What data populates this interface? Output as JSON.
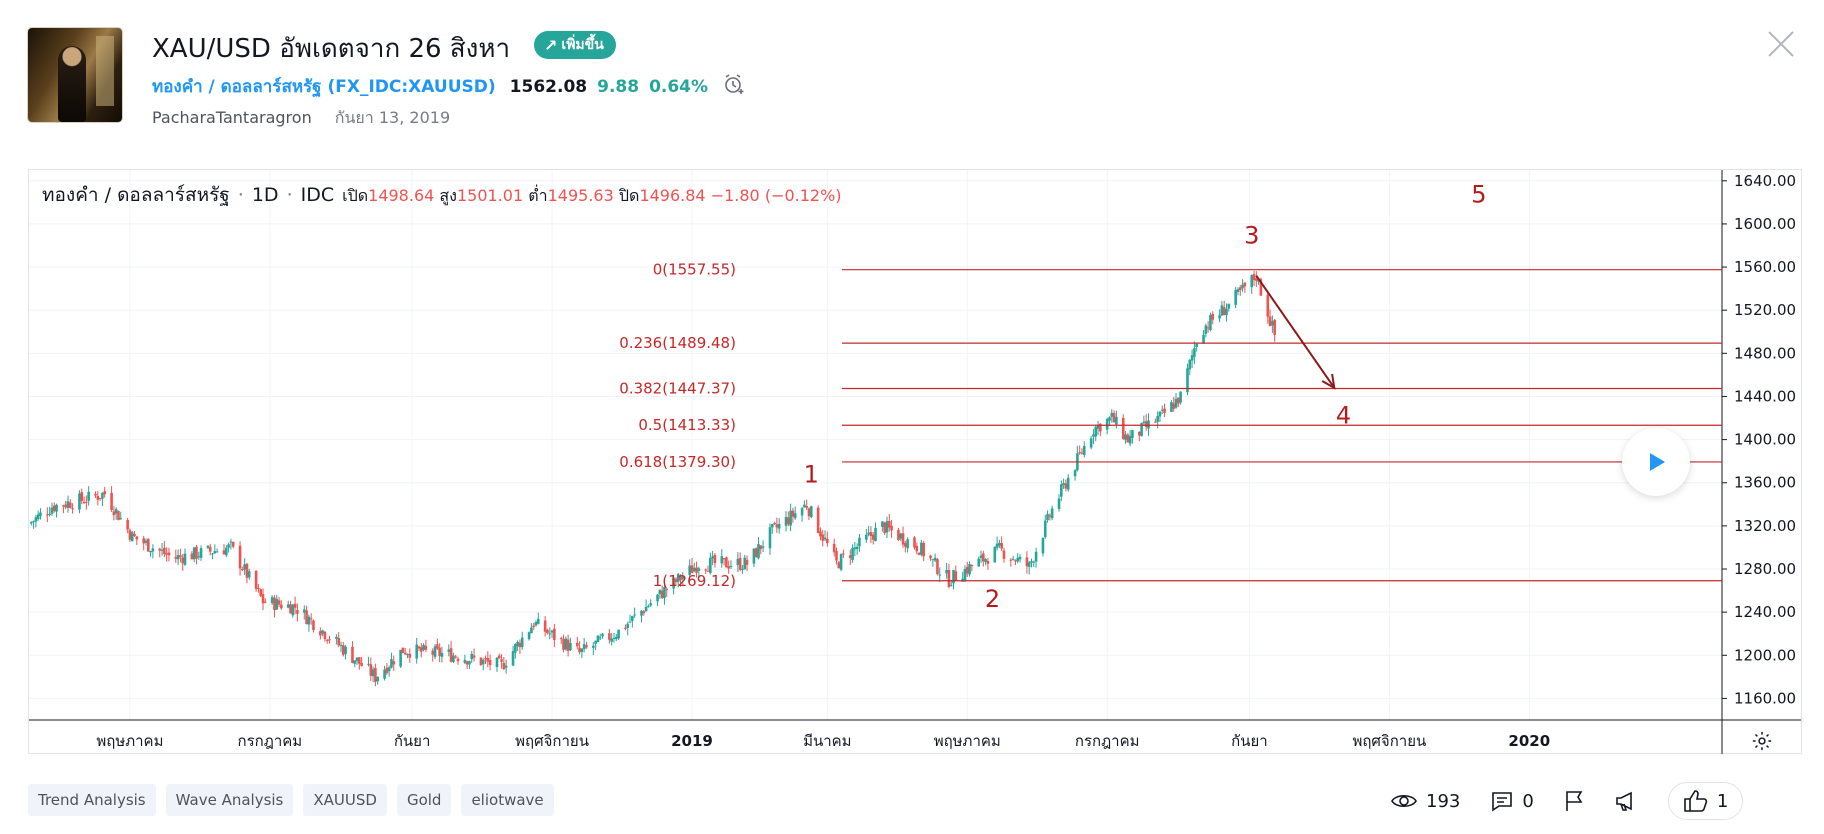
{
  "header": {
    "title": "XAU/USD อัพเดตจาก 26 สิงหา",
    "badge": "เพิ่มขึ้น",
    "symbol_name": "ทองคำ / ดอลลาร์สหรัฐ",
    "symbol_ticker": "FX_IDC:XAUUSD",
    "price": "1562.08",
    "change": "9.88",
    "change_pct": "0.64%",
    "author": "PacharaTantaragron",
    "date": "กันยา 13, 2019"
  },
  "legend": {
    "name": "ทองคำ / ดอลลาร์สหรัฐ",
    "interval": "1D",
    "source": "IDC",
    "open_label": "เปิด",
    "open": "1498.64",
    "high_label": "สูง",
    "high": "1501.01",
    "low_label": "ต่ำ",
    "low": "1495.63",
    "close_label": "ปิด",
    "close": "1496.84",
    "change": "−1.80 (−0.12%)"
  },
  "chart_data": {
    "type": "candlestick",
    "y_axis": {
      "min": 1140,
      "max": 1650,
      "ticks": [
        1160,
        1200,
        1240,
        1280,
        1320,
        1360,
        1400,
        1440,
        1480,
        1520,
        1560,
        1600,
        1640
      ],
      "tick_labels": [
        "1160.00",
        "1200.00",
        "1240.00",
        "1280.00",
        "1320.00",
        "1360.00",
        "1400.00",
        "1440.00",
        "1480.00",
        "1520.00",
        "1560.00",
        "1600.00",
        "1640.00"
      ]
    },
    "x_axis": {
      "start": "2018-03-18",
      "end": "2020-03-25",
      "ticks": [
        {
          "date": "2018-05-01",
          "label": "พฤษภาคม"
        },
        {
          "date": "2018-07-01",
          "label": "กรกฎาคม"
        },
        {
          "date": "2018-09-01",
          "label": "กันยา"
        },
        {
          "date": "2018-11-01",
          "label": "พฤศจิกายน"
        },
        {
          "date": "2019-01-01",
          "label": "2019"
        },
        {
          "date": "2019-03-01",
          "label": "มีนาคม"
        },
        {
          "date": "2019-05-01",
          "label": "พฤษภาคม"
        },
        {
          "date": "2019-07-01",
          "label": "กรกฎาคม"
        },
        {
          "date": "2019-09-01",
          "label": "กันยา"
        },
        {
          "date": "2019-11-01",
          "label": "พฤศจิกายน"
        },
        {
          "date": "2020-01-01",
          "label": "2020"
        }
      ]
    },
    "price_anchors": [
      [
        "2018-03-18",
        1322
      ],
      [
        "2018-03-28",
        1338
      ],
      [
        "2018-04-12",
        1345
      ],
      [
        "2018-04-20",
        1350
      ],
      [
        "2018-05-02",
        1310
      ],
      [
        "2018-05-20",
        1290
      ],
      [
        "2018-06-14",
        1300
      ],
      [
        "2018-06-28",
        1250
      ],
      [
        "2018-07-12",
        1245
      ],
      [
        "2018-08-16",
        1180
      ],
      [
        "2018-08-28",
        1205
      ],
      [
        "2018-09-20",
        1200
      ],
      [
        "2018-10-10",
        1190
      ],
      [
        "2018-10-24",
        1230
      ],
      [
        "2018-11-13",
        1202
      ],
      [
        "2018-11-30",
        1222
      ],
      [
        "2018-12-20",
        1260
      ],
      [
        "2019-01-04",
        1285
      ],
      [
        "2019-01-25",
        1285
      ],
      [
        "2019-02-05",
        1315
      ],
      [
        "2019-02-20",
        1340
      ],
      [
        "2019-03-05",
        1285
      ],
      [
        "2019-03-25",
        1320
      ],
      [
        "2019-04-10",
        1300
      ],
      [
        "2019-04-23",
        1270
      ],
      [
        "2019-05-15",
        1298
      ],
      [
        "2019-05-28",
        1282
      ],
      [
        "2019-06-07",
        1335
      ],
      [
        "2019-06-25",
        1410
      ],
      [
        "2019-07-03",
        1420
      ],
      [
        "2019-07-10",
        1400
      ],
      [
        "2019-07-25",
        1422
      ],
      [
        "2019-08-02",
        1440
      ],
      [
        "2019-08-10",
        1500
      ],
      [
        "2019-08-23",
        1525
      ],
      [
        "2019-09-04",
        1552
      ],
      [
        "2019-09-12",
        1497
      ]
    ],
    "fib_levels": [
      {
        "ratio": "0",
        "price": 1557.55,
        "label": "0(1557.55)"
      },
      {
        "ratio": "0.236",
        "price": 1489.48,
        "label": "0.236(1489.48)"
      },
      {
        "ratio": "0.382",
        "price": 1447.37,
        "label": "0.382(1447.37)"
      },
      {
        "ratio": "0.5",
        "price": 1413.33,
        "label": "0.5(1413.33)"
      },
      {
        "ratio": "0.618",
        "price": 1379.3,
        "label": "0.618(1379.30)"
      },
      {
        "ratio": "1",
        "price": 1269.12,
        "label": "1(1269.12)"
      }
    ],
    "fib_start": "2019-01-01",
    "wave_labels": [
      {
        "text": "1",
        "date": "2019-02-22",
        "price": 1360
      },
      {
        "text": "2",
        "date": "2019-05-12",
        "price": 1245
      },
      {
        "text": "3",
        "date": "2019-09-02",
        "price": 1582
      },
      {
        "text": "4",
        "date": "2019-10-12",
        "price": 1415
      },
      {
        "text": "5",
        "date": "2019-12-10",
        "price": 1620
      }
    ],
    "wave_arrow": {
      "from": [
        "2019-09-04",
        1552
      ],
      "to": [
        "2019-10-08",
        1448
      ]
    },
    "colors": {
      "up": "#26a69a",
      "down": "#ef5350",
      "fib": "#c62828",
      "wave_text": "#b71c1c",
      "arrow": "#8b1a1a"
    }
  },
  "tags": [
    "Trend Analysis",
    "Wave Analysis",
    "XAUUSD",
    "Gold",
    "eliotwave"
  ],
  "stats": {
    "views": "193",
    "comments": "0",
    "likes": "1"
  },
  "icons": {
    "close": "close-icon",
    "alarm": "alarm-clock-icon",
    "play": "play-icon",
    "settings": "gear-icon",
    "views": "eye-icon",
    "comments": "comment-icon",
    "flag": "flag-icon",
    "share": "megaphone-icon",
    "like": "thumbs-up-icon"
  }
}
